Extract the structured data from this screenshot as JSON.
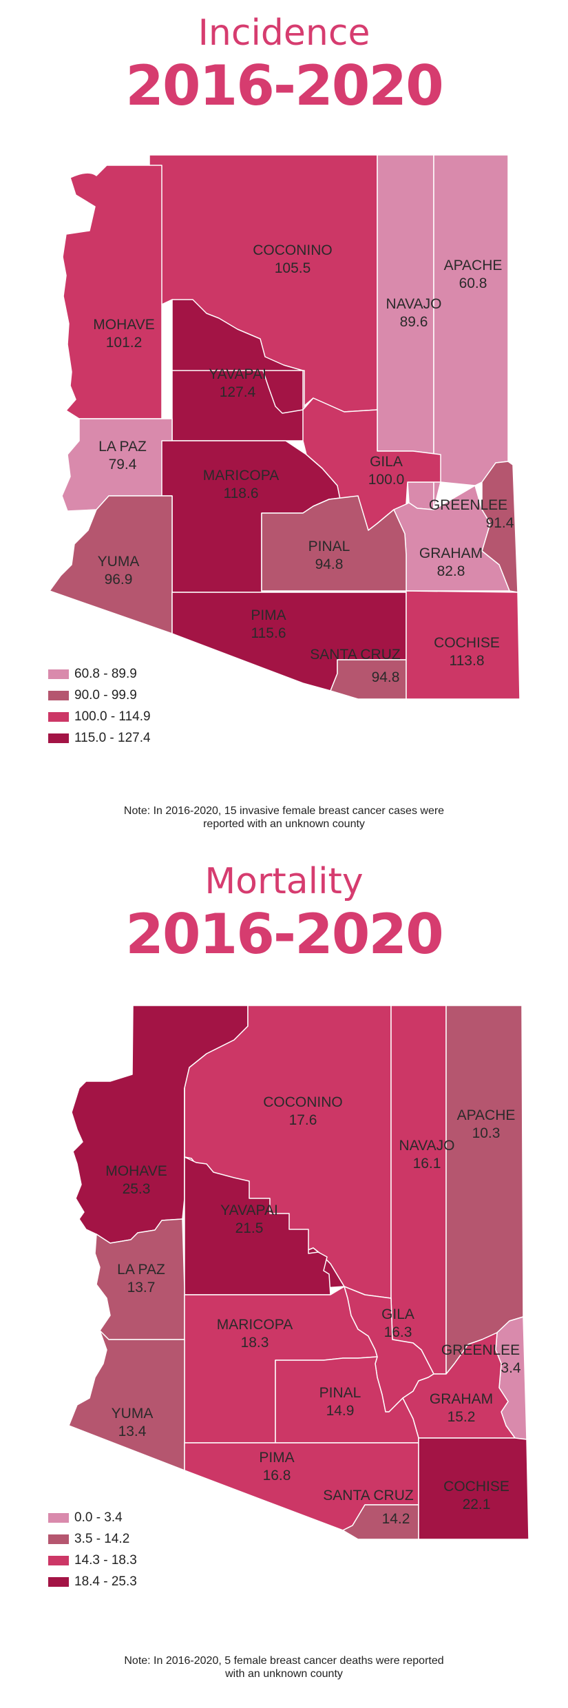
{
  "incidence": {
    "title": "Incidence",
    "years": "2016-2020",
    "colors": {
      "c1": "#d98aac",
      "c2": "#b5566f",
      "c3": "#cc3766",
      "c4": "#a31445"
    },
    "legend": [
      {
        "label": "60.8 - 89.9",
        "color": "#d98aac"
      },
      {
        "label": "90.0 - 99.9",
        "color": "#b5566f"
      },
      {
        "label": "100.0 - 114.9",
        "color": "#cc3766"
      },
      {
        "label": "115.0 - 127.4",
        "color": "#a31445"
      }
    ],
    "counties": {
      "coconino": {
        "name": "COCONINO",
        "value": "105.5"
      },
      "apache": {
        "name": "APACHE",
        "value": "60.8"
      },
      "navajo": {
        "name": "NAVAJO",
        "value": "89.6"
      },
      "mohave": {
        "name": "MOHAVE",
        "value": "101.2"
      },
      "yavapai": {
        "name": "YAVAPAI",
        "value": "127.4"
      },
      "lapaz": {
        "name": "LA PAZ",
        "value": "79.4"
      },
      "maricopa": {
        "name": "MARICOPA",
        "value": "118.6"
      },
      "gila": {
        "name": "GILA",
        "value": "100.0"
      },
      "greenlee": {
        "name": "GREENLEE",
        "value": "91.4"
      },
      "yuma": {
        "name": "YUMA",
        "value": "96.9"
      },
      "pinal": {
        "name": "PINAL",
        "value": "94.8"
      },
      "graham": {
        "name": "GRAHAM",
        "value": "82.8"
      },
      "pima": {
        "name": "PIMA",
        "value": "115.6"
      },
      "cochise": {
        "name": "COCHISE",
        "value": "113.8"
      },
      "santacruz": {
        "name": "SANTA CRUZ",
        "value": "94.8"
      }
    },
    "note_line1": "Note: In 2016-2020, 15 invasive female breast cancer cases were",
    "note_line2": "reported with an unknown county"
  },
  "mortality": {
    "title": "Mortality",
    "years": "2016-2020",
    "legend": [
      {
        "label": "0.0 - 3.4",
        "color": "#d98aac"
      },
      {
        "label": "3.5 - 14.2",
        "color": "#b5566f"
      },
      {
        "label": "14.3 - 18.3",
        "color": "#cc3766"
      },
      {
        "label": "18.4 - 25.3",
        "color": "#a31445"
      }
    ],
    "counties": {
      "coconino": {
        "name": "COCONINO",
        "value": "17.6"
      },
      "apache": {
        "name": "APACHE",
        "value": "10.3"
      },
      "navajo": {
        "name": "NAVAJO",
        "value": "16.1"
      },
      "mohave": {
        "name": "MOHAVE",
        "value": "25.3"
      },
      "yavapai": {
        "name": "YAVAPAI",
        "value": "21.5"
      },
      "lapaz": {
        "name": "LA PAZ",
        "value": "13.7"
      },
      "maricopa": {
        "name": "MARICOPA",
        "value": "18.3"
      },
      "gila": {
        "name": "GILA",
        "value": "16.3"
      },
      "greenlee": {
        "name": "GREENLEE",
        "value": "3.4"
      },
      "yuma": {
        "name": "YUMA",
        "value": "13.4"
      },
      "pinal": {
        "name": "PINAL",
        "value": "14.9"
      },
      "graham": {
        "name": "GRAHAM",
        "value": "15.2"
      },
      "pima": {
        "name": "PIMA",
        "value": "16.8"
      },
      "cochise": {
        "name": "COCHISE",
        "value": "22.1"
      },
      "santacruz": {
        "name": "SANTA CRUZ",
        "value": "14.2"
      }
    },
    "note_line1": "Note: In 2016-2020, 5 female breast cancer deaths were reported",
    "note_line2": "with an unknown county"
  }
}
